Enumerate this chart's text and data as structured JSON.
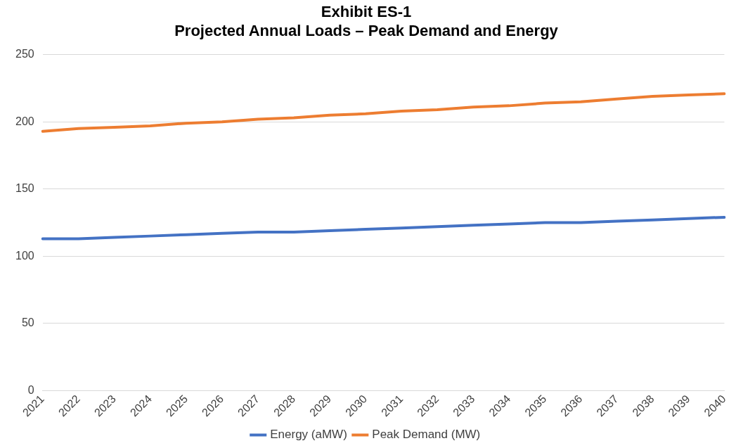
{
  "chart_data": {
    "type": "line",
    "title": [
      "Exhibit ES-1",
      "Projected Annual Loads – Peak Demand and Energy"
    ],
    "categories": [
      "2021",
      "2022",
      "2023",
      "2024",
      "2025",
      "2026",
      "2027",
      "2028",
      "2029",
      "2030",
      "2031",
      "2032",
      "2033",
      "2034",
      "2035",
      "2036",
      "2037",
      "2038",
      "2039",
      "2040"
    ],
    "series": [
      {
        "name": "Energy (aMW)",
        "color": "#4472c4",
        "values": [
          113,
          113,
          114,
          115,
          116,
          117,
          118,
          118,
          119,
          120,
          121,
          122,
          123,
          124,
          125,
          125,
          126,
          127,
          128,
          129
        ]
      },
      {
        "name": "Peak Demand (MW)",
        "color": "#ed7d31",
        "values": [
          193,
          195,
          196,
          197,
          199,
          200,
          202,
          203,
          205,
          206,
          208,
          209,
          211,
          212,
          214,
          215,
          217,
          219,
          220,
          221
        ]
      }
    ],
    "ylim": [
      0,
      250
    ],
    "yticks": [
      0,
      50,
      100,
      150,
      200,
      250
    ],
    "grid": "y",
    "legend": "bottom",
    "marker": "none",
    "line_style": "solid"
  }
}
